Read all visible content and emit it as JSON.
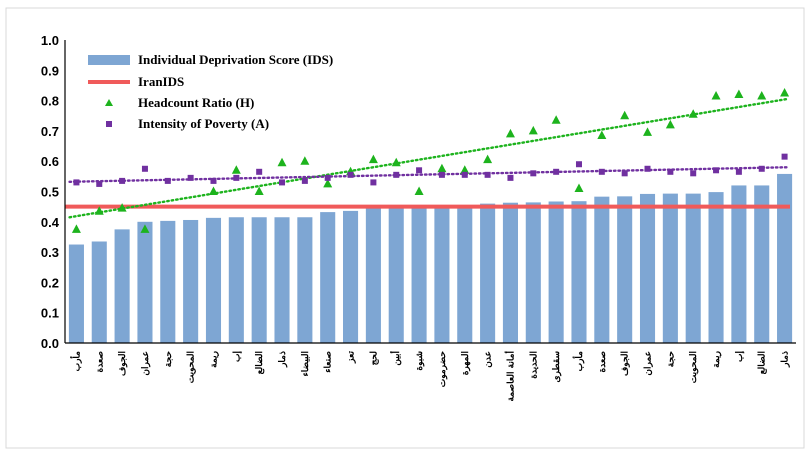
{
  "chart_data": {
    "type": "bar",
    "ylim": [
      0,
      1.0
    ],
    "yticks": [
      "0.0",
      "0.1",
      "0.2",
      "0.3",
      "0.4",
      "0.5",
      "0.6",
      "0.7",
      "0.8",
      "0.9",
      "1.0"
    ],
    "grid": false,
    "legend_position": "top-left",
    "categories": [
      "مأرب",
      "صعدة",
      "الجوف",
      "عمران",
      "حجة",
      "المحويت",
      "ريمة",
      "إب",
      "الضالع",
      "ذمار",
      "البيضاء",
      "صنعاء",
      "تعز",
      "لحج",
      "أبين",
      "شبوة",
      "حضرموت",
      "المهرة",
      "عدن",
      "أمانة العاصمة",
      "الحديدة",
      "سقطرى",
      "مأرب",
      "صعدة",
      "الجوف",
      "عمران",
      "حجة",
      "المحويت",
      "ريمة",
      "إب",
      "الضالع",
      "ذمار"
    ],
    "series": [
      {
        "name": "Individual Deprivation Score (IDS)",
        "kind": "bar",
        "color": "#7ea6d3",
        "values": [
          0.325,
          0.335,
          0.375,
          0.4,
          0.403,
          0.406,
          0.413,
          0.415,
          0.415,
          0.415,
          0.415,
          0.432,
          0.436,
          0.446,
          0.449,
          0.451,
          0.451,
          0.455,
          0.46,
          0.463,
          0.464,
          0.467,
          0.468,
          0.483,
          0.484,
          0.492,
          0.493,
          0.493,
          0.498,
          0.52,
          0.52,
          0.558
        ]
      },
      {
        "name": "IranIDS",
        "kind": "hline",
        "color": "#f05a5a",
        "value": 0.45
      },
      {
        "name": "Headcount Ratio (H)",
        "kind": "scatter",
        "marker": "triangle",
        "color": "#1db31d",
        "values": [
          0.375,
          0.435,
          0.445,
          0.375,
          null,
          null,
          0.5,
          0.57,
          0.5,
          0.595,
          0.6,
          0.525,
          0.565,
          0.605,
          0.595,
          0.5,
          0.575,
          0.57,
          0.605,
          0.69,
          0.7,
          0.735,
          0.51,
          0.685,
          0.75,
          0.695,
          0.72,
          0.755,
          0.815,
          0.82,
          0.815,
          0.825
        ]
      },
      {
        "name": "Intensity of Poverty (A)",
        "kind": "scatter",
        "marker": "square",
        "color": "#7030a0",
        "values": [
          0.53,
          0.525,
          0.535,
          0.575,
          0.535,
          0.545,
          0.535,
          0.545,
          0.565,
          0.53,
          0.535,
          0.545,
          0.555,
          0.53,
          0.555,
          0.57,
          0.555,
          0.555,
          0.555,
          0.545,
          0.56,
          0.565,
          0.59,
          0.565,
          0.56,
          0.575,
          0.565,
          0.56,
          0.57,
          0.565,
          0.575,
          0.615
        ]
      }
    ],
    "trendlines": [
      {
        "series": "Headcount Ratio (H)",
        "color": "#1db31d",
        "style": "dotted",
        "start": 0.415,
        "end": 0.805
      },
      {
        "series": "Intensity of Poverty (A)",
        "color": "#7030a0",
        "style": "dotted",
        "start": 0.532,
        "end": 0.58
      }
    ]
  }
}
